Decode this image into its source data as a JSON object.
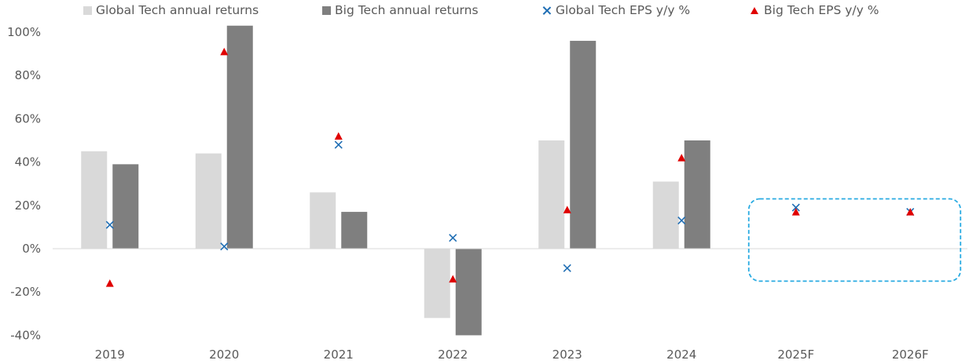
{
  "chart_data": {
    "type": "bar",
    "categories": [
      "2019",
      "2020",
      "2021",
      "2022",
      "2023",
      "2024",
      "2025F",
      "2026F"
    ],
    "series": [
      {
        "name": "Global Tech annual returns",
        "kind": "bar",
        "color": "#d9d9d9",
        "values": [
          45,
          44,
          26,
          -32,
          50,
          31,
          null,
          null
        ]
      },
      {
        "name": "Big Tech annual returns",
        "kind": "bar",
        "color": "#7f7f7f",
        "values": [
          39,
          103,
          17,
          -40,
          96,
          50,
          null,
          null
        ]
      },
      {
        "name": "Global Tech EPS y/y %",
        "kind": "marker-x",
        "color": "#1f6eb4",
        "values": [
          11,
          1,
          48,
          5,
          -9,
          13,
          19,
          17
        ]
      },
      {
        "name": "Big Tech EPS y/y %",
        "kind": "marker-triangle",
        "color": "#e00000",
        "values": [
          -16,
          91,
          52,
          -14,
          18,
          42,
          17,
          17
        ]
      }
    ],
    "yticks": [
      "100%",
      "80%",
      "60%",
      "40%",
      "20%",
      "0%",
      "-20%",
      "-40%"
    ],
    "ylim": [
      -40,
      100
    ],
    "grid": false,
    "legend_position": "top",
    "highlight": {
      "categories": [
        "2025F",
        "2026F"
      ],
      "style": "dashed rounded box",
      "color": "#29abe2"
    }
  }
}
